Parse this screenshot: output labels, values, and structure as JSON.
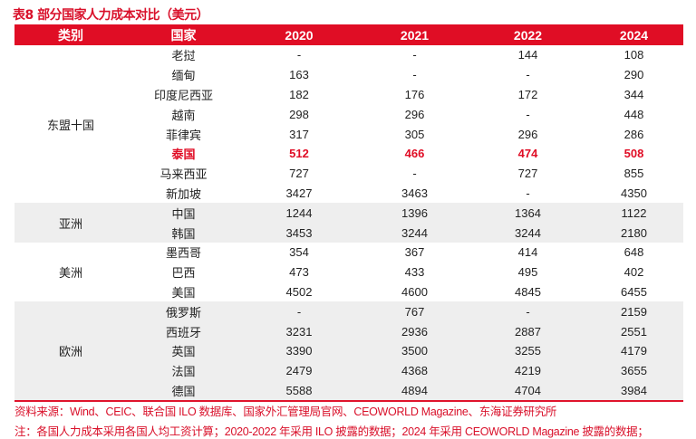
{
  "title": "表8  部分国家人力成本对比（美元）",
  "headers": [
    "类别",
    "国家",
    "2020",
    "2021",
    "2022",
    "2024"
  ],
  "groups": [
    {
      "name": "东盟十国",
      "grey": false,
      "rows": [
        {
          "country": "老挝",
          "values": [
            "-",
            "-",
            "144",
            "108"
          ]
        },
        {
          "country": "缅甸",
          "values": [
            "163",
            "-",
            "-",
            "290"
          ]
        },
        {
          "country": "印度尼西亚",
          "values": [
            "182",
            "176",
            "172",
            "344"
          ]
        },
        {
          "country": "越南",
          "values": [
            "298",
            "296",
            "-",
            "448"
          ]
        },
        {
          "country": "菲律宾",
          "values": [
            "317",
            "305",
            "296",
            "286"
          ]
        },
        {
          "country": "泰国",
          "values": [
            "512",
            "466",
            "474",
            "508"
          ],
          "highlight": true
        },
        {
          "country": "马来西亚",
          "values": [
            "727",
            "-",
            "727",
            "855"
          ]
        },
        {
          "country": "新加坡",
          "values": [
            "3427",
            "3463",
            "-",
            "4350"
          ]
        }
      ]
    },
    {
      "name": "亚洲",
      "grey": true,
      "rows": [
        {
          "country": "中国",
          "values": [
            "1244",
            "1396",
            "1364",
            "1122"
          ]
        },
        {
          "country": "韩国",
          "values": [
            "3453",
            "3244",
            "3244",
            "2180"
          ]
        }
      ]
    },
    {
      "name": "美洲",
      "grey": false,
      "rows": [
        {
          "country": "墨西哥",
          "values": [
            "354",
            "367",
            "414",
            "648"
          ]
        },
        {
          "country": "巴西",
          "values": [
            "473",
            "433",
            "495",
            "402"
          ]
        },
        {
          "country": "美国",
          "values": [
            "4502",
            "4600",
            "4845",
            "6455"
          ]
        }
      ]
    },
    {
      "name": "欧洲",
      "grey": true,
      "rows": [
        {
          "country": "俄罗斯",
          "values": [
            "-",
            "767",
            "-",
            "2159"
          ]
        },
        {
          "country": "西班牙",
          "values": [
            "3231",
            "2936",
            "2887",
            "2551"
          ]
        },
        {
          "country": "英国",
          "values": [
            "3390",
            "3500",
            "3255",
            "4179"
          ]
        },
        {
          "country": "法国",
          "values": [
            "2479",
            "4368",
            "4219",
            "3655"
          ]
        },
        {
          "country": "德国",
          "values": [
            "5588",
            "4894",
            "4704",
            "3984"
          ]
        }
      ]
    }
  ],
  "source": "资料来源：Wind、CEIC、联合国 ILO 数据库、国家外汇管理局官网、CEOWORLD Magazine、东海证券研究所",
  "note": "注：各国人力成本采用各国人均工资计算；2020-2022 年采用 ILO 披露的数据；2024 年采用 CEOWORLD Magazine 披露的数据；",
  "colors": {
    "accent": "#e00d25",
    "band": "#eeeeee"
  }
}
